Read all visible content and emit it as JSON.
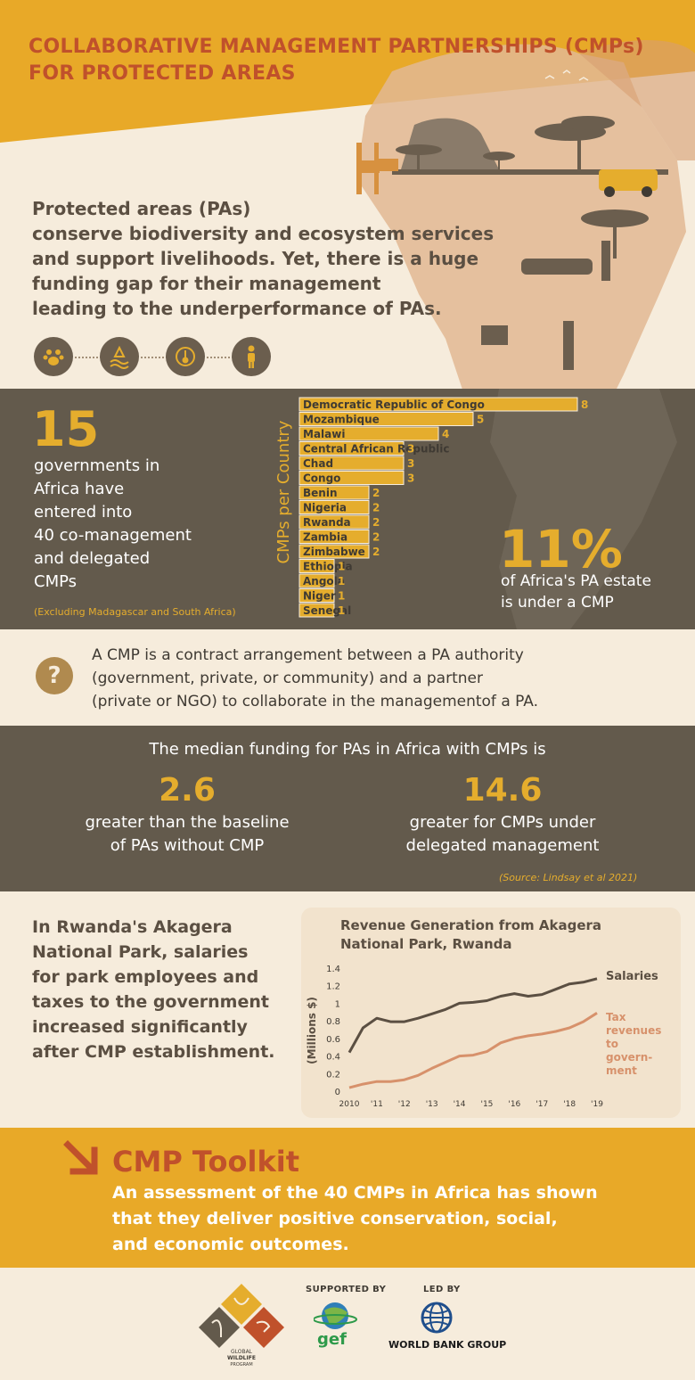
{
  "header": {
    "title_line1": "COLLABORATIVE MANAGEMENT PARTNERSHIPS (CMPs)",
    "title_line2": "FOR PROTECTED AREAS",
    "intro_lines": [
      "Protected areas (PAs)",
      "conserve biodiversity and ecosystem services",
      "and support livelihoods. Yet, there is a huge",
      "funding gap for their management",
      "leading to the underperformance of PAs."
    ],
    "icons": [
      "paw-icon",
      "water-icon",
      "thermometer-icon",
      "person-icon"
    ]
  },
  "stats": {
    "count": "15",
    "gov_lines": [
      "governments in",
      "Africa have",
      "entered into",
      "40 co-management",
      "and delegated",
      "CMPs"
    ],
    "exclusion_note": "(Excluding Madagascar and South Africa)",
    "pct": "11%",
    "pct_lines": [
      "of Africa's PA estate",
      "is under a CMP"
    ]
  },
  "chart_data": [
    {
      "type": "bar",
      "orientation": "horizontal",
      "ylabel": "CMPs per Country",
      "categories": [
        "Democratic Republic of Congo",
        "Mozambique",
        "Malawi",
        "Central African Republic",
        "Chad",
        "Congo",
        "Benin",
        "Nigeria",
        "Rwanda",
        "Zambia",
        "Zimbabwe",
        "Ethiopia",
        "Angola",
        "Niger",
        "Senegal"
      ],
      "values": [
        8,
        5,
        4,
        3,
        3,
        3,
        2,
        2,
        2,
        2,
        2,
        1,
        1,
        1,
        1
      ],
      "xlim": [
        0,
        8
      ],
      "colors": {
        "bar": "#e5ad2d",
        "bar_border": "#f6ecdc",
        "label": "#3f3a33",
        "value": "#e5ad2d"
      }
    },
    {
      "type": "line",
      "title_lines": [
        "Revenue Generation from Akagera",
        "National Park, Rwanda"
      ],
      "ylabel": "(Millions $)",
      "x_ticks": [
        "2010",
        "'11",
        "'12",
        "'13",
        "'14",
        "'15",
        "'16",
        "'17",
        "'18",
        "'19"
      ],
      "y_ticks": [
        "0",
        "0.2",
        "0.4",
        "0.6",
        "0.8",
        "1",
        "1.2",
        "1.4"
      ],
      "ylim": [
        0,
        1.4
      ],
      "x": [
        2010,
        2010.5,
        2011,
        2011.5,
        2012,
        2012.5,
        2013,
        2013.5,
        2014,
        2014.5,
        2015,
        2015.5,
        2016,
        2016.5,
        2017,
        2017.5,
        2018,
        2018.5,
        2019
      ],
      "series": [
        {
          "name": "Salaries",
          "color": "#5b4f42",
          "values": [
            0.44,
            0.72,
            0.83,
            0.79,
            0.79,
            0.83,
            0.88,
            0.93,
            1.0,
            1.01,
            1.03,
            1.08,
            1.11,
            1.08,
            1.1,
            1.16,
            1.22,
            1.24,
            1.28
          ]
        },
        {
          "name": "Tax revenues to government",
          "name_lines": [
            "Tax",
            "revenues",
            "to",
            "govern-",
            "ment"
          ],
          "color": "#d7916b",
          "values": [
            0.04,
            0.08,
            0.11,
            0.11,
            0.13,
            0.18,
            0.26,
            0.33,
            0.4,
            0.41,
            0.45,
            0.55,
            0.6,
            0.63,
            0.65,
            0.68,
            0.72,
            0.79,
            0.89
          ]
        }
      ]
    }
  ],
  "definition": {
    "icon": "question-icon",
    "icon_glyph": "?",
    "lines": [
      "A CMP is a contract arrangement between a PA authority",
      "(government, private, or community) and a partner",
      "(private or NGO) to collaborate in the managementof a PA."
    ]
  },
  "funding": {
    "title": "The median funding for PAs in Africa with CMPs is",
    "left_num": "2.6",
    "left_lines": [
      "greater than the baseline",
      "of PAs without CMP"
    ],
    "right_num": "14.6",
    "right_lines": [
      "greater for CMPs under",
      "delegated management"
    ],
    "source": "(Source: Lindsay et al 2021)"
  },
  "rwanda": {
    "lines": [
      "In Rwanda's Akagera",
      "National Park, salaries",
      "for park employees and",
      "taxes to the government",
      "increased significantly",
      "after CMP establishment."
    ]
  },
  "toolkit": {
    "arrow_icon": "arrow-down-right-icon",
    "title": "CMP Toolkit",
    "lines": [
      "An assessment of the 40 CMPs in Africa has shown",
      "that they deliver positive conservation, social,",
      "and economic outcomes."
    ]
  },
  "footer": {
    "gwp_lines": [
      "GLOBAL",
      "WILDLIFE",
      "PROGRAM"
    ],
    "supported_by": "SUPPORTED BY",
    "gef": "gef",
    "led_by": "LED BY",
    "wbg": "WORLD BANK GROUP"
  },
  "colors": {
    "accent": "#e5ad2d",
    "orange": "#e8a928",
    "title_red": "#c0512b",
    "dark_band": "#635a4c",
    "cream": "#f6ecdc",
    "brown_text": "#5b4f42"
  }
}
